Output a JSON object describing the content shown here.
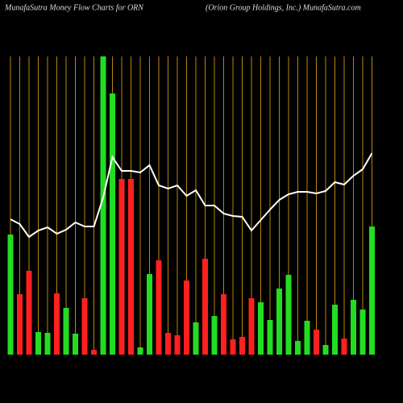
{
  "chart_data": {
    "type": "bar",
    "title": "MunafaSutra  Money Flow  Charts for ORN",
    "subtitle": "(Orion  Group Holdings,  Inc.) MunafaSutra.com",
    "ylim": [
      0,
      370
    ],
    "grid_color": "#b8860b",
    "bars": {
      "values": [
        149,
        75,
        104,
        28,
        27,
        76,
        58,
        26,
        70,
        6,
        370,
        324,
        218,
        218,
        9,
        100,
        117,
        27,
        24,
        92,
        40,
        119,
        48,
        75,
        19,
        22,
        70,
        65,
        43,
        82,
        99,
        17,
        42,
        31,
        12,
        62,
        20,
        68,
        56,
        159
      ],
      "colors": [
        "#22dd22",
        "#ff2020",
        "#ff2020",
        "#22dd22",
        "#22dd22",
        "#ff2020",
        "#22dd22",
        "#22dd22",
        "#ff2020",
        "#ff2020",
        "#22dd22",
        "#22dd22",
        "#ff2020",
        "#ff2020",
        "#22dd22",
        "#22dd22",
        "#ff2020",
        "#ff2020",
        "#ff2020",
        "#ff2020",
        "#22dd22",
        "#ff2020",
        "#22dd22",
        "#ff2020",
        "#ff2020",
        "#ff2020",
        "#ff2020",
        "#22dd22",
        "#22dd22",
        "#22dd22",
        "#22dd22",
        "#22dd22",
        "#22dd22",
        "#ff2020",
        "#22dd22",
        "#22dd22",
        "#ff2020",
        "#22dd22",
        "#22dd22",
        "#22dd22"
      ]
    },
    "line": {
      "color": "#ffffff",
      "values": [
        168,
        162,
        146,
        154,
        158,
        150,
        155,
        164,
        159,
        159,
        195,
        245,
        228,
        228,
        226,
        235,
        210,
        206,
        210,
        197,
        204,
        185,
        185,
        175,
        172,
        171,
        154,
        167,
        180,
        192,
        199,
        202,
        202,
        200,
        203,
        214,
        211,
        222,
        230,
        250
      ]
    }
  }
}
